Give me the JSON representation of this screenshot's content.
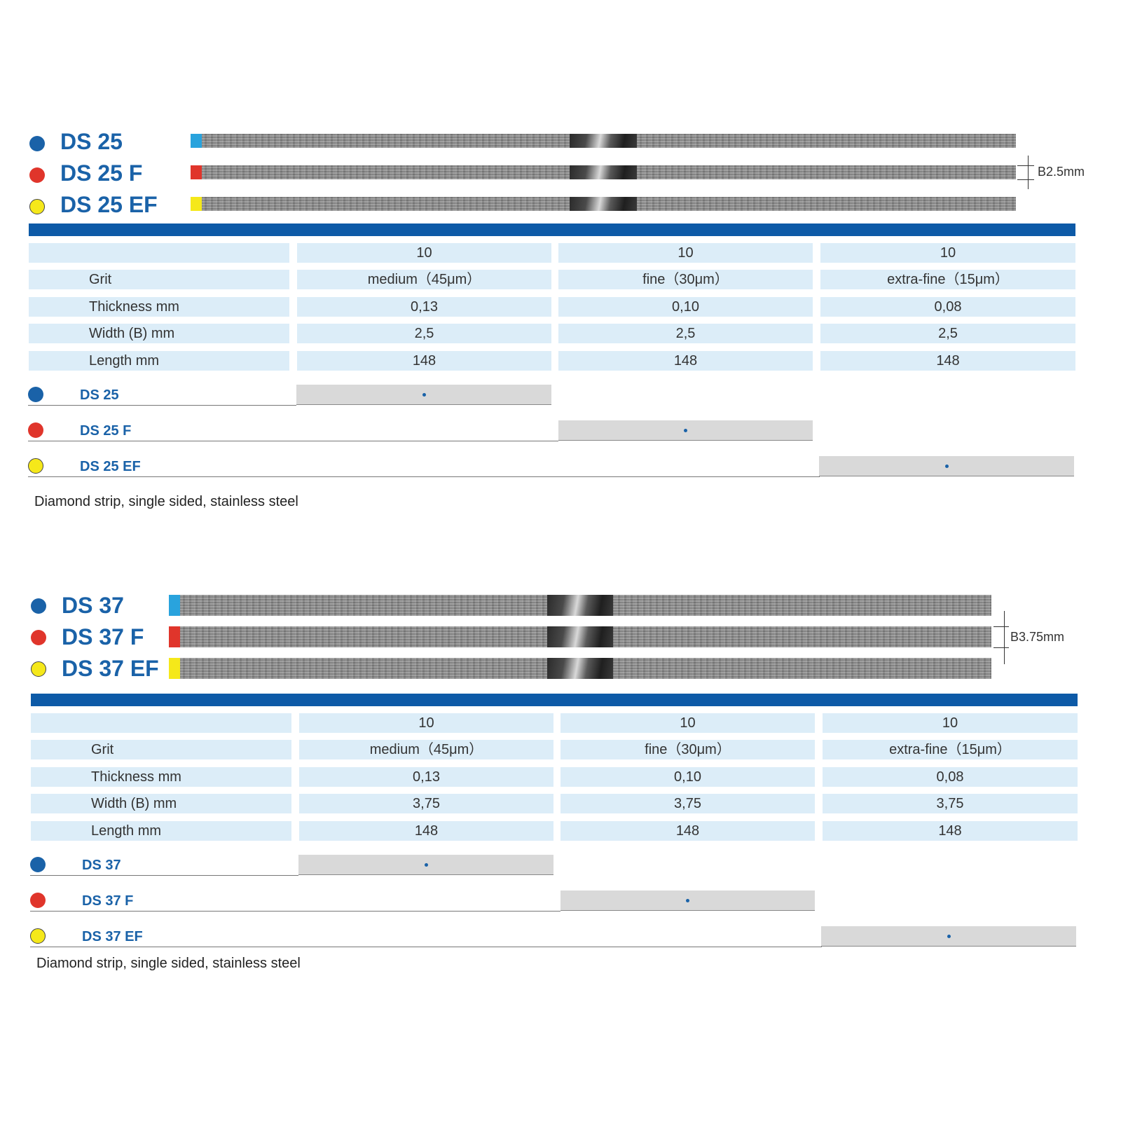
{
  "colors": {
    "blue": "#1a62a8",
    "red": "#e0352b",
    "yellow": "#f5e81a",
    "cap_blue": "#29a3dd",
    "bar": "#0d5aa7"
  },
  "sections": [
    {
      "products": [
        {
          "name": "DS 25",
          "color": "blue"
        },
        {
          "name": "DS 25 F",
          "color": "red"
        },
        {
          "name": "DS 25 EF",
          "color": "yellow"
        }
      ],
      "dimension_label": "B2.5mm",
      "table": {
        "header": [
          "",
          "10",
          "10",
          "10"
        ],
        "rows": [
          {
            "label": "Grit",
            "values": [
              "medium（45μm）",
              "fine（30μm）",
              "extra-fine（15μm）"
            ]
          },
          {
            "label": "Thickness mm",
            "values": [
              "0,13",
              "0,10",
              "0,08"
            ]
          },
          {
            "label": "Width (B) mm",
            "values": [
              "2,5",
              "2,5",
              "2,5"
            ]
          },
          {
            "label": "Length mm",
            "values": [
              "148",
              "148",
              "148"
            ]
          }
        ]
      },
      "order_rows": [
        {
          "name": "DS 25",
          "color": "blue",
          "column": 1
        },
        {
          "name": "DS 25 F",
          "color": "red",
          "column": 2
        },
        {
          "name": "DS 25 EF",
          "color": "yellow",
          "column": 3
        }
      ],
      "description": "Diamond strip, single sided, stainless steel"
    },
    {
      "products": [
        {
          "name": "DS 37",
          "color": "blue"
        },
        {
          "name": "DS 37 F",
          "color": "red"
        },
        {
          "name": "DS 37 EF",
          "color": "yellow"
        }
      ],
      "dimension_label": "B3.75mm",
      "table": {
        "header": [
          "",
          "10",
          "10",
          "10"
        ],
        "rows": [
          {
            "label": "Grit",
            "values": [
              "medium（45μm）",
              "fine（30μm）",
              "extra-fine（15μm）"
            ]
          },
          {
            "label": "Thickness mm",
            "values": [
              "0,13",
              "0,10",
              "0,08"
            ]
          },
          {
            "label": "Width (B) mm",
            "values": [
              "3,75",
              "3,75",
              "3,75"
            ]
          },
          {
            "label": "Length mm",
            "values": [
              "148",
              "148",
              "148"
            ]
          }
        ]
      },
      "order_rows": [
        {
          "name": "DS 37",
          "color": "blue",
          "column": 1
        },
        {
          "name": "DS 37 F",
          "color": "red",
          "column": 2
        },
        {
          "name": "DS 37 EF",
          "color": "yellow",
          "column": 3
        }
      ],
      "description": "Diamond strip, single sided, stainless steel"
    }
  ]
}
